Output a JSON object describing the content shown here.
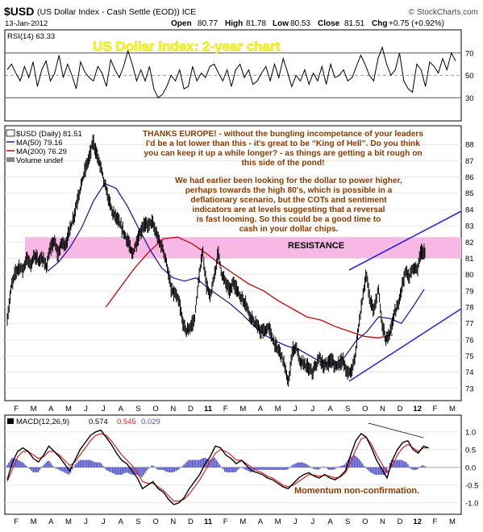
{
  "header": {
    "symbol": "$USD",
    "description": "(US Dollar Index - Cash Settle (EOD)) ICE",
    "watermark": "© StockCharts.com",
    "date": "13-Jan-2012",
    "open_label": "Open",
    "open": "80.77",
    "high_label": "High",
    "high": "81.78",
    "low_label": "Low",
    "low": "80.53",
    "close_label": "Close",
    "close": "81.51",
    "chg_label": "Chg",
    "chg": "+0.75 (+0.92%)"
  },
  "rsi_panel": {
    "label": "RSI(14) 63.33",
    "title": "US Dollar Index: 2-year chart"
  },
  "price_panel": {
    "legend_main": "$USD (Daily) 81.51",
    "legend_ma50": "MA(50) 79.16",
    "legend_ma200": "MA(200) 76.29",
    "legend_volume": "Volume undef",
    "resistance_label": "RESISTANCE",
    "annotation_1": [
      "THANKS EUROPE! - without the bungling incompetance of your leaders",
      "I'd be a lot lower than this  - it's great to be “King of Hell”. Do you think",
      "you can keep it up a while longer? - as things are getting a bit rough on",
      "this side of the pond!"
    ],
    "annotation_2": [
      "We had earlier been looking for the dollar to power higher,",
      "perhaps towards the high 80's, which is possible in a",
      "deflationary scenario, but the COTs and sentiment",
      "indicators are at levels suggesting that a reversal",
      "is fast looming. So this could be a good time to",
      "cash in your dollar chips."
    ]
  },
  "macd_panel": {
    "label": "MACD(12,26,9)",
    "macd": "0.574",
    "signal": "0.545",
    "histogram": "0.029",
    "annotation": "Momentum non-confirmation."
  },
  "colors": {
    "title_text": "#ffff00",
    "annotation_text": "#8b3a00",
    "resistance_band": "#f8b8e6",
    "ma50": "#2020a0",
    "ma200": "#cc0000",
    "trendline": "#2828e0",
    "signal": "#e02020",
    "histogram": "#5050c8"
  },
  "chart_data": [
    {
      "type": "line",
      "panel": "RSI(14)",
      "y_ticks": [
        "70",
        "50",
        "30"
      ],
      "ylim": [
        10,
        90
      ],
      "series": [
        {
          "name": "RSI(14)",
          "values": [
            55,
            60,
            52,
            45,
            58,
            48,
            62,
            40,
            55,
            63,
            45,
            52,
            68,
            48,
            60,
            50,
            38,
            62,
            53,
            48,
            45,
            58,
            52,
            40,
            64,
            55,
            48,
            58,
            72,
            60,
            45,
            55,
            45,
            58,
            38,
            30,
            33,
            40,
            50,
            45,
            55,
            38,
            40,
            58,
            45,
            52,
            48,
            58,
            60,
            52,
            45,
            55,
            40,
            55,
            60,
            48,
            55,
            42,
            45,
            52,
            58,
            45,
            60,
            48,
            65,
            53,
            40,
            50,
            45,
            55,
            42,
            52,
            45,
            58,
            42,
            60,
            48,
            50,
            55,
            45,
            48,
            58,
            68,
            60,
            50,
            45,
            65,
            75,
            60,
            50,
            55,
            70,
            45,
            38,
            35,
            60,
            55,
            40,
            62,
            58,
            52,
            65,
            55,
            70,
            63
          ]
        }
      ]
    },
    {
      "type": "line",
      "panel": "price",
      "x_tick_labels": [
        "F",
        "M",
        "A",
        "M",
        "J",
        "J",
        "A",
        "S",
        "O",
        "N",
        "D",
        "11",
        "F",
        "M",
        "A",
        "M",
        "J",
        "J",
        "A",
        "S",
        "O",
        "N",
        "D",
        "12",
        "F",
        "M"
      ],
      "y_ticks": [
        "88",
        "87",
        "86",
        "85",
        "84",
        "83",
        "82",
        "81",
        "80",
        "79",
        "78",
        "77",
        "76",
        "75",
        "74",
        "73"
      ],
      "ylim": [
        72.3,
        89.1
      ],
      "resistance_band": [
        81.0,
        82.3
      ],
      "series": [
        {
          "name": "$USD",
          "values": [
            77.2,
            79.2,
            80.1,
            80.5,
            80.3,
            81.0,
            80.6,
            81.2,
            80.8,
            81.0,
            80.5,
            81.5,
            82.1,
            81.2,
            82.0,
            81.8,
            82.8,
            83.5,
            84.6,
            85.6,
            86.5,
            87.2,
            88.2,
            87.3,
            86.6,
            85.5,
            84.6,
            83.8,
            83.5,
            83.0,
            82.5,
            82.0,
            81.2,
            81.9,
            82.5,
            83.1,
            83.0,
            83.3,
            82.6,
            82.0,
            81.5,
            80.5,
            79.0,
            78.8,
            78.3,
            77.0,
            76.5,
            76.8,
            77.3,
            79.5,
            81.5,
            79.4,
            78.6,
            79.8,
            81.4,
            80.0,
            79.5,
            79.0,
            79.5,
            79.0,
            78.5,
            78.3,
            77.6,
            77.2,
            76.8,
            76.5,
            76.5,
            76.8,
            76.0,
            75.5,
            75.2,
            74.5,
            73.2,
            75.3,
            75.6,
            74.6,
            74.5,
            74.3,
            74.0,
            74.3,
            75.0,
            74.3,
            74.5,
            74.8,
            74.3,
            74.6,
            74.7,
            74.0,
            74.0,
            74.8,
            76.8,
            78.5,
            80.0,
            78.3,
            77.7,
            79.2,
            77.0,
            76.0,
            76.3,
            77.5,
            78.0,
            79.2,
            80.2,
            79.8,
            80.5,
            80.3,
            81.5,
            81.3
          ]
        },
        {
          "name": "MA(50)",
          "values": [
            80.2,
            80.8,
            81.7,
            82.9,
            84.5,
            85.6,
            85.3,
            84.2,
            82.8,
            81.5,
            80.4,
            79.8,
            79.6,
            79.8,
            79.2,
            78.7,
            78.2,
            77.6,
            76.9,
            76.3,
            75.9,
            75.6,
            75.4,
            75.0,
            74.6,
            74.5,
            74.9,
            75.9,
            76.5,
            77.4,
            77.3,
            77.0,
            78.0,
            79.1
          ]
        },
        {
          "name": "MA(200)",
          "values": [
            78.0,
            79.2,
            80.4,
            81.4,
            82.2,
            82.3,
            81.9,
            81.3,
            80.6,
            80.0,
            79.4,
            79.0,
            78.4,
            77.9,
            77.4,
            77.2,
            76.8,
            76.5,
            76.2,
            76.1,
            76.3
          ]
        }
      ]
    },
    {
      "type": "line",
      "panel": "MACD(12,26,9)",
      "y_ticks": [
        "1.0",
        "0.5",
        "0.0",
        "-0.5",
        "-1.0"
      ],
      "ylim": [
        -1.3,
        1.45
      ],
      "series": [
        {
          "name": "MACD",
          "values": [
            -0.35,
            0.15,
            0.45,
            0.55,
            0.45,
            0.25,
            0.15,
            0.35,
            0.6,
            0.45,
            0.3,
            0.1,
            -0.1,
            0.2,
            0.5,
            0.7,
            0.9,
            1.0,
            1.05,
            0.85,
            0.65,
            0.4,
            0.2,
            0.1,
            -0.1,
            -0.3,
            -0.6,
            -0.5,
            -0.4,
            -0.6,
            -0.7,
            -0.9,
            -1.05,
            -1.0,
            -0.85,
            -0.6,
            -0.4,
            -0.2,
            0.1,
            0.3,
            0.6,
            0.55,
            0.35,
            0.25,
            0.1,
            0.2,
            0.05,
            -0.1,
            -0.15,
            -0.2,
            -0.3,
            -0.35,
            -0.45,
            -0.55,
            -0.6,
            -0.45,
            -0.3,
            -0.2,
            -0.15,
            -0.25,
            -0.3,
            -0.2,
            -0.3,
            -0.35,
            -0.25,
            -0.1,
            0.35,
            0.75,
            0.95,
            0.85,
            0.55,
            0.2,
            -0.05,
            -0.3,
            0.2,
            0.5,
            0.7,
            0.75,
            0.5,
            0.4,
            0.6,
            0.55
          ]
        },
        {
          "name": "Signal",
          "values": [
            -0.4,
            -0.05,
            0.3,
            0.45,
            0.45,
            0.35,
            0.25,
            0.3,
            0.45,
            0.45,
            0.35,
            0.2,
            0.05,
            0.15,
            0.35,
            0.55,
            0.75,
            0.9,
            0.95,
            0.9,
            0.75,
            0.55,
            0.35,
            0.2,
            0.05,
            -0.15,
            -0.4,
            -0.45,
            -0.45,
            -0.55,
            -0.65,
            -0.8,
            -0.95,
            -0.95,
            -0.9,
            -0.75,
            -0.55,
            -0.35,
            -0.1,
            0.15,
            0.4,
            0.5,
            0.45,
            0.35,
            0.2,
            0.2,
            0.1,
            0.0,
            -0.1,
            -0.15,
            -0.25,
            -0.3,
            -0.4,
            -0.5,
            -0.55,
            -0.5,
            -0.4,
            -0.3,
            -0.2,
            -0.22,
            -0.25,
            -0.22,
            -0.25,
            -0.3,
            -0.27,
            -0.15,
            0.15,
            0.5,
            0.8,
            0.85,
            0.65,
            0.35,
            0.1,
            -0.15,
            0.05,
            0.35,
            0.55,
            0.65,
            0.55,
            0.45,
            0.55,
            0.55
          ]
        }
      ]
    }
  ]
}
